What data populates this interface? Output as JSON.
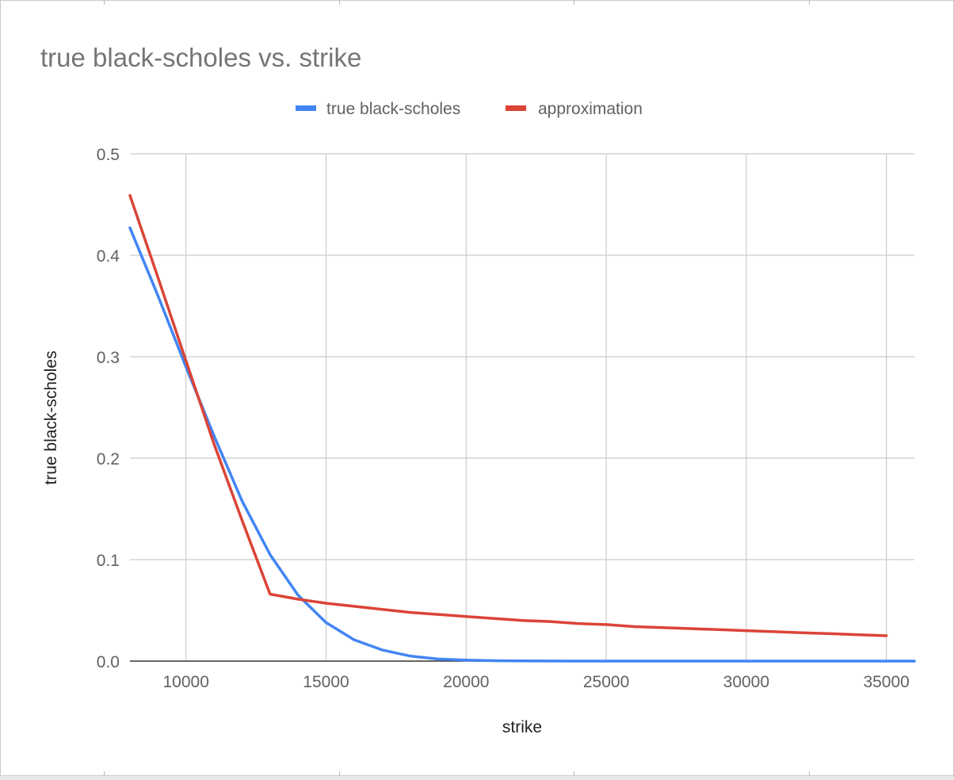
{
  "chart_data": {
    "type": "line",
    "title": "true black-scholes vs. strike",
    "xlabel": "strike",
    "ylabel": "true black-scholes",
    "xlim": [
      8000,
      36000
    ],
    "ylim": [
      0,
      0.5
    ],
    "x_ticks": [
      10000,
      15000,
      20000,
      25000,
      30000,
      35000
    ],
    "x_tick_labels": [
      "10000",
      "15000",
      "20000",
      "25000",
      "30000",
      "35000"
    ],
    "y_ticks": [
      0,
      0.1,
      0.2,
      0.3,
      0.4,
      0.5
    ],
    "y_tick_labels": [
      "0.0",
      "0.1",
      "0.2",
      "0.3",
      "0.4",
      "0.5"
    ],
    "grid": true,
    "legend": "top-center",
    "series": [
      {
        "name": "true black-scholes",
        "color": "#4285f4",
        "x": [
          8000,
          9000,
          10000,
          11000,
          12000,
          13000,
          14000,
          15000,
          16000,
          17000,
          18000,
          19000,
          20000,
          21000,
          22000,
          23000,
          24000,
          25000,
          26000,
          27000,
          28000,
          29000,
          30000,
          31000,
          32000,
          33000,
          34000,
          35000,
          36000
        ],
        "y": [
          0.427,
          0.36,
          0.29,
          0.222,
          0.158,
          0.105,
          0.065,
          0.038,
          0.021,
          0.011,
          0.005,
          0.002,
          0.001,
          0.0004,
          0.0002,
          0.0001,
          0,
          0,
          0,
          0,
          0,
          0,
          0,
          0,
          0,
          0,
          0,
          0,
          0
        ]
      },
      {
        "name": "approximation",
        "color": "#db4437",
        "x": [
          8000,
          9000,
          10000,
          11000,
          12000,
          13000,
          14000,
          15000,
          16000,
          17000,
          18000,
          19000,
          20000,
          21000,
          22000,
          23000,
          24000,
          25000,
          26000,
          27000,
          28000,
          29000,
          30000,
          31000,
          32000,
          33000,
          34000,
          35000
        ],
        "y": [
          0.459,
          0.378,
          0.296,
          0.214,
          0.139,
          0.066,
          0.061,
          0.057,
          0.054,
          0.051,
          0.048,
          0.046,
          0.044,
          0.042,
          0.04,
          0.039,
          0.037,
          0.036,
          0.034,
          0.033,
          0.032,
          0.031,
          0.03,
          0.029,
          0.028,
          0.027,
          0.026,
          0.025
        ]
      }
    ]
  }
}
